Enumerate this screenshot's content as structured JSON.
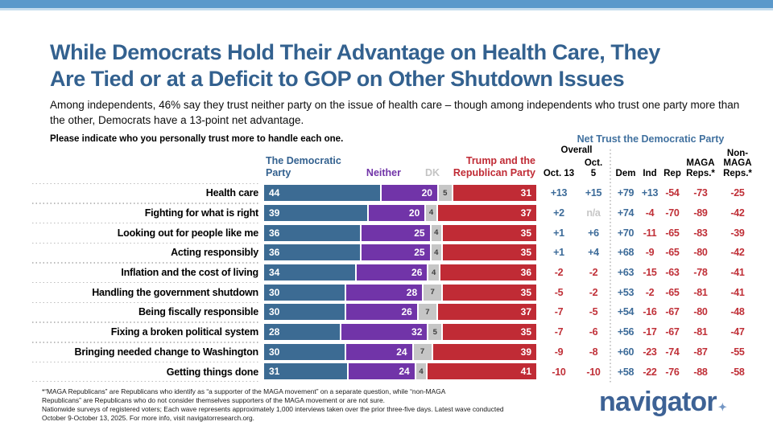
{
  "header": {
    "title_line1": "While Democrats Hold Their Advantage on Health Care, They",
    "title_line2": "Are Tied or at a Deficit to GOP on Other Shutdown Issues",
    "subtitle": "Among independents, 46% say they trust neither party on the issue of health care – though among independents who trust one party more than the other, Democrats have a 13-point net advantage.",
    "question": "Please indicate who you personally trust more to handle each one."
  },
  "colors": {
    "top_bar": "#5b99cb",
    "democratic_blue": "#3c6b93",
    "neither_purple": "#7134a8",
    "dk_gray": "#c6c6c6",
    "republican_red": "#c02b35",
    "net_positive_blue": "#3c6b99",
    "net_negative_red": "#c03038",
    "title_blue": "#33618f"
  },
  "chart_data": {
    "type": "bar",
    "subtype": "stacked-horizontal",
    "title": "Please indicate who you personally trust more to handle each one.",
    "legend": [
      {
        "label": "The Democratic\nParty",
        "color": "#3c6b93"
      },
      {
        "label": "Neither",
        "color": "#7134a8"
      },
      {
        "label": "DK",
        "color": "#c6c6c6"
      },
      {
        "label": "Trump and the\nRepublican Party",
        "color": "#c02b35"
      }
    ],
    "categories": [
      "Health care",
      "Fighting for what is right",
      "Looking out for people like me",
      "Acting responsibly",
      "Inflation and the cost of living",
      "Handling the government shutdown",
      "Being fiscally responsible",
      "Fixing a broken political system",
      "Bringing needed change to Washington",
      "Getting things done"
    ],
    "series": [
      {
        "key": "dem",
        "name": "The Democratic Party",
        "values": [
          44,
          39,
          36,
          36,
          34,
          30,
          30,
          28,
          30,
          31
        ]
      },
      {
        "key": "nei",
        "name": "Neither",
        "values": [
          20,
          20,
          25,
          25,
          26,
          28,
          26,
          32,
          24,
          24
        ]
      },
      {
        "key": "dk",
        "name": "DK",
        "values": [
          5,
          4,
          4,
          4,
          4,
          7,
          7,
          5,
          7,
          4
        ]
      },
      {
        "key": "gop",
        "name": "Trump and the Republican Party",
        "values": [
          31,
          37,
          35,
          35,
          36,
          35,
          37,
          35,
          39,
          41
        ]
      }
    ],
    "xlim": [
      0,
      100
    ],
    "grid": false
  },
  "net_table": {
    "title": "Net Trust the Democratic Party",
    "group_overall": "Overall",
    "columns": [
      "Oct. 13",
      "Oct. 5",
      "Dem",
      "Ind",
      "Rep",
      "MAGA\nReps.*",
      "Non-\nMAGA\nReps.*"
    ],
    "rows": [
      [
        "+13",
        "+15",
        "+79",
        "+13",
        "-54",
        "-73",
        "-25"
      ],
      [
        "+2",
        "n/a",
        "+74",
        "-4",
        "-70",
        "-89",
        "-42"
      ],
      [
        "+1",
        "+6",
        "+70",
        "-11",
        "-65",
        "-83",
        "-39"
      ],
      [
        "+1",
        "+4",
        "+68",
        "-9",
        "-65",
        "-80",
        "-42"
      ],
      [
        "-2",
        "-2",
        "+63",
        "-15",
        "-63",
        "-78",
        "-41"
      ],
      [
        "-5",
        "-2",
        "+53",
        "-2",
        "-65",
        "-81",
        "-41"
      ],
      [
        "-7",
        "-5",
        "+54",
        "-16",
        "-67",
        "-80",
        "-48"
      ],
      [
        "-7",
        "-6",
        "+56",
        "-17",
        "-67",
        "-81",
        "-47"
      ],
      [
        "-9",
        "-8",
        "+60",
        "-23",
        "-74",
        "-87",
        "-55"
      ],
      [
        "-10",
        "-10",
        "+58",
        "-22",
        "-76",
        "-88",
        "-58"
      ]
    ]
  },
  "footnote": {
    "line1": "*“MAGA Republicans” are Republicans who identify as “a supporter of the MAGA movement” on a separate question, while “non-MAGA",
    "line2": "Republicans” are Republicans who do not consider themselves supporters of the MAGA movement or are not sure.",
    "line3": "Nationwide surveys of registered voters; Each wave represents approximately 1,000 interviews taken over the prior three-five days. Latest wave conducted",
    "line4": "October 9-October 13, 2025. For more info, visit navigatorresearch.org."
  },
  "logo": {
    "text": "navigator",
    "star": "✦"
  }
}
